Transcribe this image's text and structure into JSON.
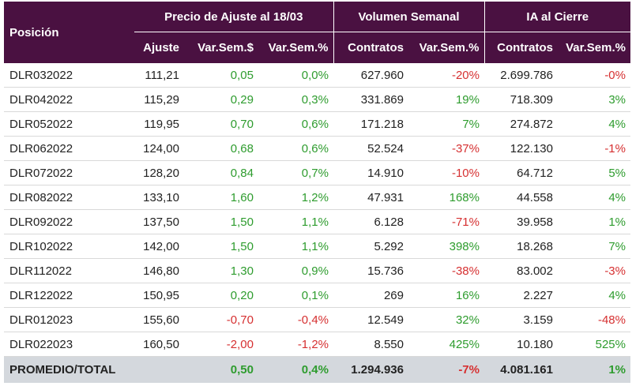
{
  "header": {
    "position": "Posición",
    "group_price": "Precio de Ajuste al 18/03",
    "group_volume": "Volumen Semanal",
    "group_ia": "IA al Cierre",
    "sub": [
      "Ajuste",
      "Var.Sem.$",
      "Var.Sem.%",
      "Contratos",
      "Var.Sem.%",
      "Contratos",
      "Var.Sem.%"
    ]
  },
  "rows": [
    [
      "DLR032022",
      "111,21",
      "0,05",
      "0,0%",
      "627.960",
      "-20%",
      "2.699.786",
      "-0%"
    ],
    [
      "DLR042022",
      "115,29",
      "0,29",
      "0,3%",
      "331.869",
      "19%",
      "718.309",
      "3%"
    ],
    [
      "DLR052022",
      "119,95",
      "0,70",
      "0,6%",
      "171.218",
      "7%",
      "274.872",
      "4%"
    ],
    [
      "DLR062022",
      "124,00",
      "0,68",
      "0,6%",
      "52.524",
      "-37%",
      "122.130",
      "-1%"
    ],
    [
      "DLR072022",
      "128,20",
      "0,84",
      "0,7%",
      "14.910",
      "-10%",
      "64.712",
      "5%"
    ],
    [
      "DLR082022",
      "133,10",
      "1,60",
      "1,2%",
      "47.931",
      "168%",
      "44.558",
      "4%"
    ],
    [
      "DLR092022",
      "137,50",
      "1,50",
      "1,1%",
      "6.128",
      "-71%",
      "39.958",
      "1%"
    ],
    [
      "DLR102022",
      "142,00",
      "1,50",
      "1,1%",
      "5.292",
      "398%",
      "18.268",
      "7%"
    ],
    [
      "DLR112022",
      "146,80",
      "1,30",
      "0,9%",
      "15.736",
      "-38%",
      "83.002",
      "-3%"
    ],
    [
      "DLR122022",
      "150,95",
      "0,20",
      "0,1%",
      "269",
      "16%",
      "2.227",
      "4%"
    ],
    [
      "DLR012023",
      "155,60",
      "-0,70",
      "-0,4%",
      "12.549",
      "32%",
      "3.159",
      "-48%"
    ],
    [
      "DLR022023",
      "160,50",
      "-2,00",
      "-1,2%",
      "8.550",
      "425%",
      "10.180",
      "525%"
    ]
  ],
  "total": [
    "PROMEDIO/TOTAL",
    "",
    "0,50",
    "0,4%",
    "1.294.936",
    "-7%",
    "4.081.161",
    "1%"
  ],
  "colors": {
    "header_bg": "#4a1141",
    "positive": "#2e9c2e",
    "negative": "#d63031",
    "total_bg": "#d4d8dd"
  }
}
